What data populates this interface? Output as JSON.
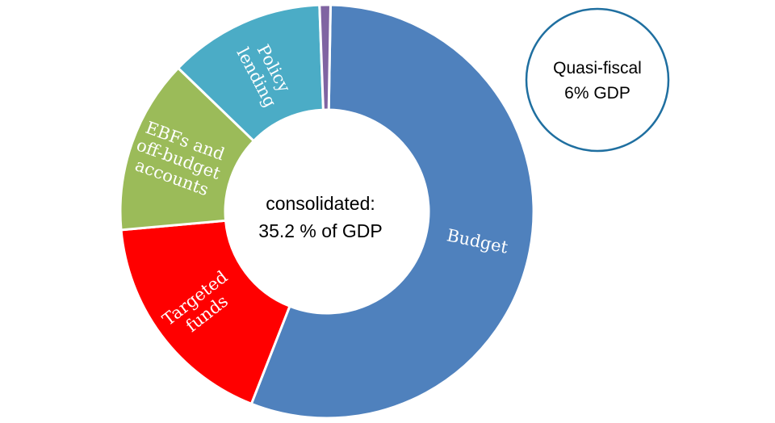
{
  "chart_data": {
    "type": "pie",
    "donut": true,
    "unit": "% of GDP",
    "title": "",
    "center_label": {
      "line1": "consolidated:",
      "line2": "35.2 % of GDP"
    },
    "slices": [
      {
        "label_lines": [
          "Budget"
        ],
        "value": 19.6,
        "color": "#4F81BD"
      },
      {
        "label_lines": [
          "Targeted",
          "funds"
        ],
        "value": 6.2,
        "color": "#FF0000"
      },
      {
        "label_lines": [
          "EBFs and",
          "off-budget",
          "accounts"
        ],
        "value": 4.8,
        "color": "#9BBB59"
      },
      {
        "label_lines": [
          "Policy",
          "lending"
        ],
        "value": 4.3,
        "color": "#4BACC6"
      },
      {
        "label_lines": [],
        "value": 0.3,
        "color": "#8064A2"
      }
    ],
    "total": 35.2
  },
  "callout": {
    "line1": "Quasi-fiscal",
    "line2": "6% GDP",
    "border_color": "#1F6FA0"
  }
}
